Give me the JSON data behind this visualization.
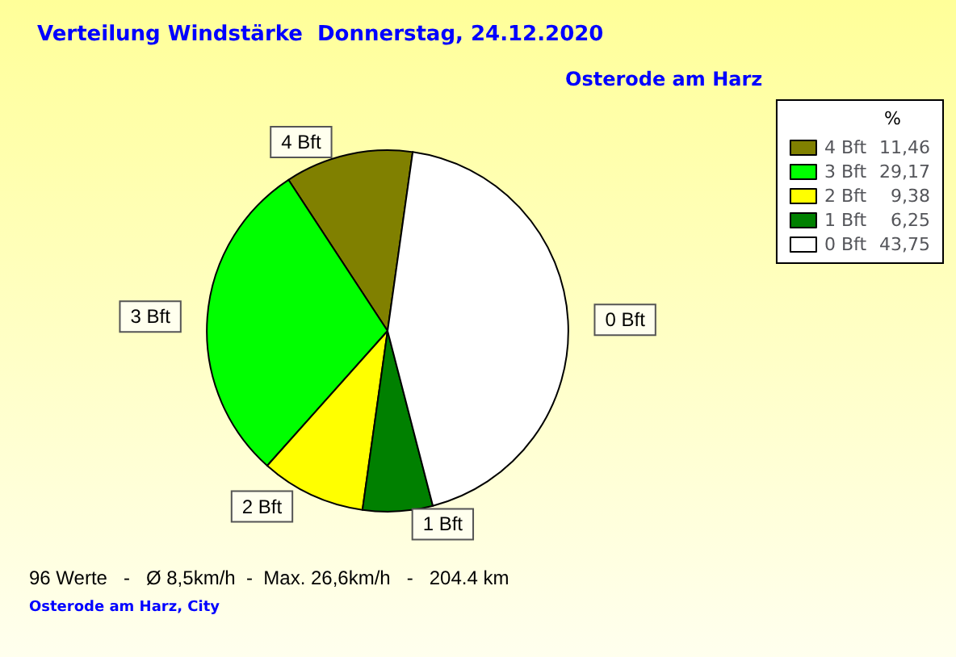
{
  "chart_data": {
    "type": "pie",
    "title": "Verteilung Windstärke  Donnerstag, 24.12.2020",
    "subtitle": "Osterode am Harz",
    "legend_title": "%",
    "legend": "top right",
    "categories": [
      "4 Bft",
      "3 Bft",
      "2 Bft",
      "1 Bft",
      "0 Bft"
    ],
    "values": [
      11.46,
      29.17,
      9.38,
      6.25,
      43.75
    ],
    "value_labels": [
      "11,46",
      "29,17",
      "9,38",
      "6,25",
      "43,75"
    ],
    "colors": [
      "#808000",
      "#00ff00",
      "#ffff00",
      "#008000",
      "#ffffff"
    ],
    "annotations": [
      "96 Werte   -   Ø 8,5km/h  -  Max. 26,6km/h   -   204.4 km",
      "Osterode am Harz, City"
    ]
  }
}
